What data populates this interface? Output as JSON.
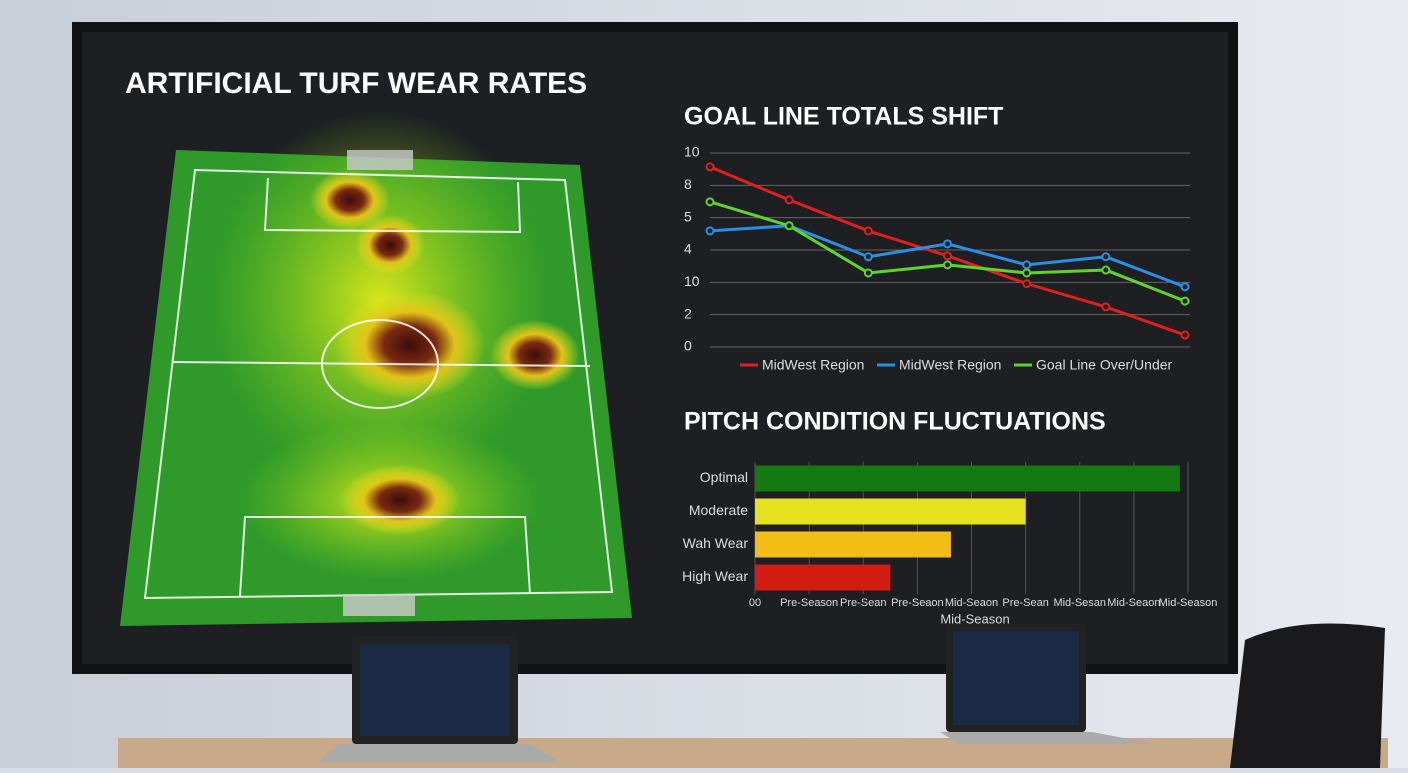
{
  "chart_data": [
    {
      "type": "heatmap",
      "title": "ARTIFICIAL TURF WEAR RATES"
    },
    {
      "type": "line",
      "title": "GOAL LINE TOTALS SHIFT",
      "categories": [
        null,
        null,
        null,
        null,
        null,
        null,
        null
      ],
      "ylim": [
        0,
        6
      ],
      "yticks": [
        0,
        {
          "value": 1,
          "label": "2"
        },
        {
          "value": 2,
          "label": "10"
        },
        {
          "value": 3,
          "label": "4"
        },
        {
          "value": 4,
          "label": "5"
        },
        {
          "value": 5,
          "label": "8"
        },
        {
          "value": 6,
          "label": "10"
        }
      ],
      "grid": true,
      "series": [
        {
          "name": "MidWest Region",
          "color": "#e0201c",
          "values": [
            5.57,
            4.55,
            3.59,
            2.82,
            1.96,
            1.24,
            0.37
          ]
        },
        {
          "name": "MidWest Region",
          "color": "#2a8fe6",
          "values": [
            3.59,
            3.75,
            2.79,
            3.19,
            2.54,
            2.79,
            1.86
          ]
        },
        {
          "name": "Goal Line Over/Under",
          "color": "#5fd42a",
          "values": [
            4.49,
            3.75,
            2.29,
            2.54,
            2.29,
            2.38,
            1.42
          ]
        }
      ]
    },
    {
      "type": "hbar",
      "title": "PITCH CONDITION FLUCTUATIONS",
      "categories": [
        "Optimal",
        "Moderate",
        "Wah Wear",
        "High Wear"
      ],
      "values": [
        7.85,
        5.0,
        3.62,
        2.5
      ],
      "colors": [
        "#137a12",
        "#e6e21e",
        "#f2bd14",
        "#d21c12"
      ],
      "xlim": [
        0,
        8
      ],
      "xticks": [
        {
          "value": 0,
          "label": "00"
        },
        {
          "value": 1,
          "label": "Pre-Season"
        },
        {
          "value": 2,
          "label": "Pre-Sean"
        },
        {
          "value": 3,
          "label": "Pre-Seaon"
        },
        {
          "value": 4,
          "label": "Mid-Seaon"
        },
        {
          "value": 5,
          "label": "Pre-Sean"
        },
        {
          "value": 6,
          "label": "Mid-Sesan"
        },
        {
          "value": 7,
          "label": "Mid-Seaon"
        },
        {
          "value": 8,
          "label": "Mid-Season"
        }
      ],
      "xlabel": "Mid-Season",
      "grid": true
    }
  ]
}
